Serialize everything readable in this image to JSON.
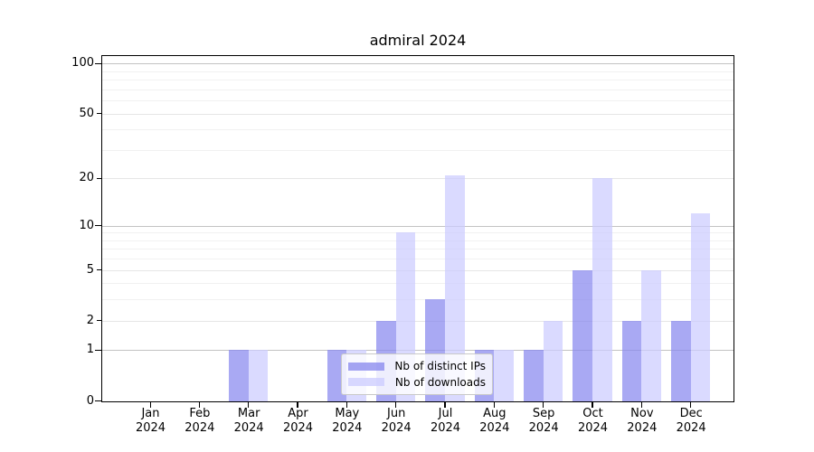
{
  "title": "admiral 2024",
  "chart_data": {
    "type": "bar",
    "title": "admiral 2024",
    "categories": [
      "Jan",
      "Feb",
      "Mar",
      "Apr",
      "May",
      "Jun",
      "Jul",
      "Aug",
      "Sep",
      "Oct",
      "Nov",
      "Dec"
    ],
    "x_year_line": "2024",
    "series": [
      {
        "name": "Nb of distinct IPs",
        "color": "#8888ee",
        "values": [
          0,
          0,
          1,
          0,
          1,
          2,
          3,
          1,
          1,
          5,
          2,
          2
        ]
      },
      {
        "name": "Nb of downloads",
        "color": "#ccccff",
        "values": [
          0,
          0,
          1,
          0,
          1,
          9,
          21,
          1,
          2,
          20,
          5,
          12
        ]
      }
    ],
    "yscale": "log(1+x)",
    "ylim": [
      0,
      111
    ],
    "y_ticks": [
      {
        "v": 100,
        "label": "100",
        "major": true
      },
      {
        "v": 50,
        "label": "50",
        "major": false
      },
      {
        "v": 20,
        "label": "20",
        "major": false
      },
      {
        "v": 10,
        "label": "10",
        "major": true
      },
      {
        "v": 5,
        "label": "5",
        "major": false
      },
      {
        "v": 2,
        "label": "2",
        "major": false
      },
      {
        "v": 1,
        "label": "1",
        "major": true
      },
      {
        "v": 0,
        "label": "0",
        "major": true
      }
    ],
    "y_minor_gridlines": [
      3,
      4,
      6,
      7,
      8,
      9,
      30,
      40,
      60,
      70,
      80,
      90
    ],
    "grid": true,
    "legend_position": "inside-lower-center"
  },
  "legend": {
    "items": [
      {
        "label": "Nb of distinct IPs",
        "color": "#8888ee"
      },
      {
        "label": "Nb of downloads",
        "color": "#ccccff"
      }
    ]
  },
  "colors": {
    "background": "#ffffff",
    "spine": "#000000",
    "grid_major": "#c3c3c3",
    "grid_minor_labeled": "#e6e6e6",
    "grid_minor": "#f1f1f1",
    "bar_distinct_ips": "#8888ee",
    "bar_downloads": "#ccccff"
  }
}
